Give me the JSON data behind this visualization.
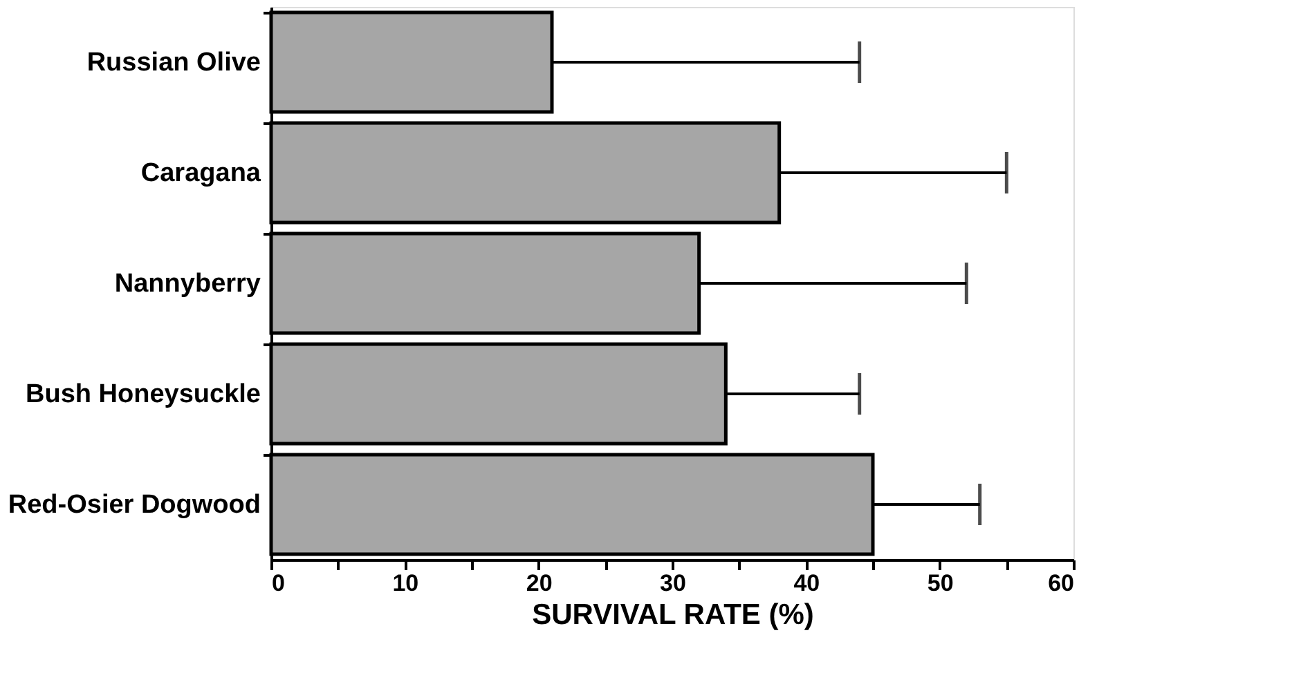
{
  "chart_data": {
    "type": "bar",
    "orientation": "horizontal",
    "xlabel": "SURVIVAL  RATE  (%)",
    "categories": [
      "Russian Olive",
      "Caragana",
      "Nannyberry",
      "Bush Honeysuckle",
      "Red-Osier Dogwood"
    ],
    "values": [
      21,
      38,
      32,
      34,
      45
    ],
    "errors": [
      [
        21,
        44
      ],
      [
        38,
        55
      ],
      [
        32,
        52
      ],
      [
        34,
        44
      ],
      [
        45,
        53
      ]
    ],
    "color": "#a6a6a6",
    "xlim": [
      0,
      60
    ],
    "xticks": [
      0,
      {
        "value": 5,
        "label": null
      },
      10,
      {
        "value": 15,
        "label": null
      },
      20,
      {
        "value": 25,
        "label": null
      },
      30,
      {
        "value": 35,
        "label": null
      },
      40,
      {
        "value": 45,
        "label": null
      },
      50,
      {
        "value": 55,
        "label": null
      },
      60
    ],
    "grid": false
  }
}
